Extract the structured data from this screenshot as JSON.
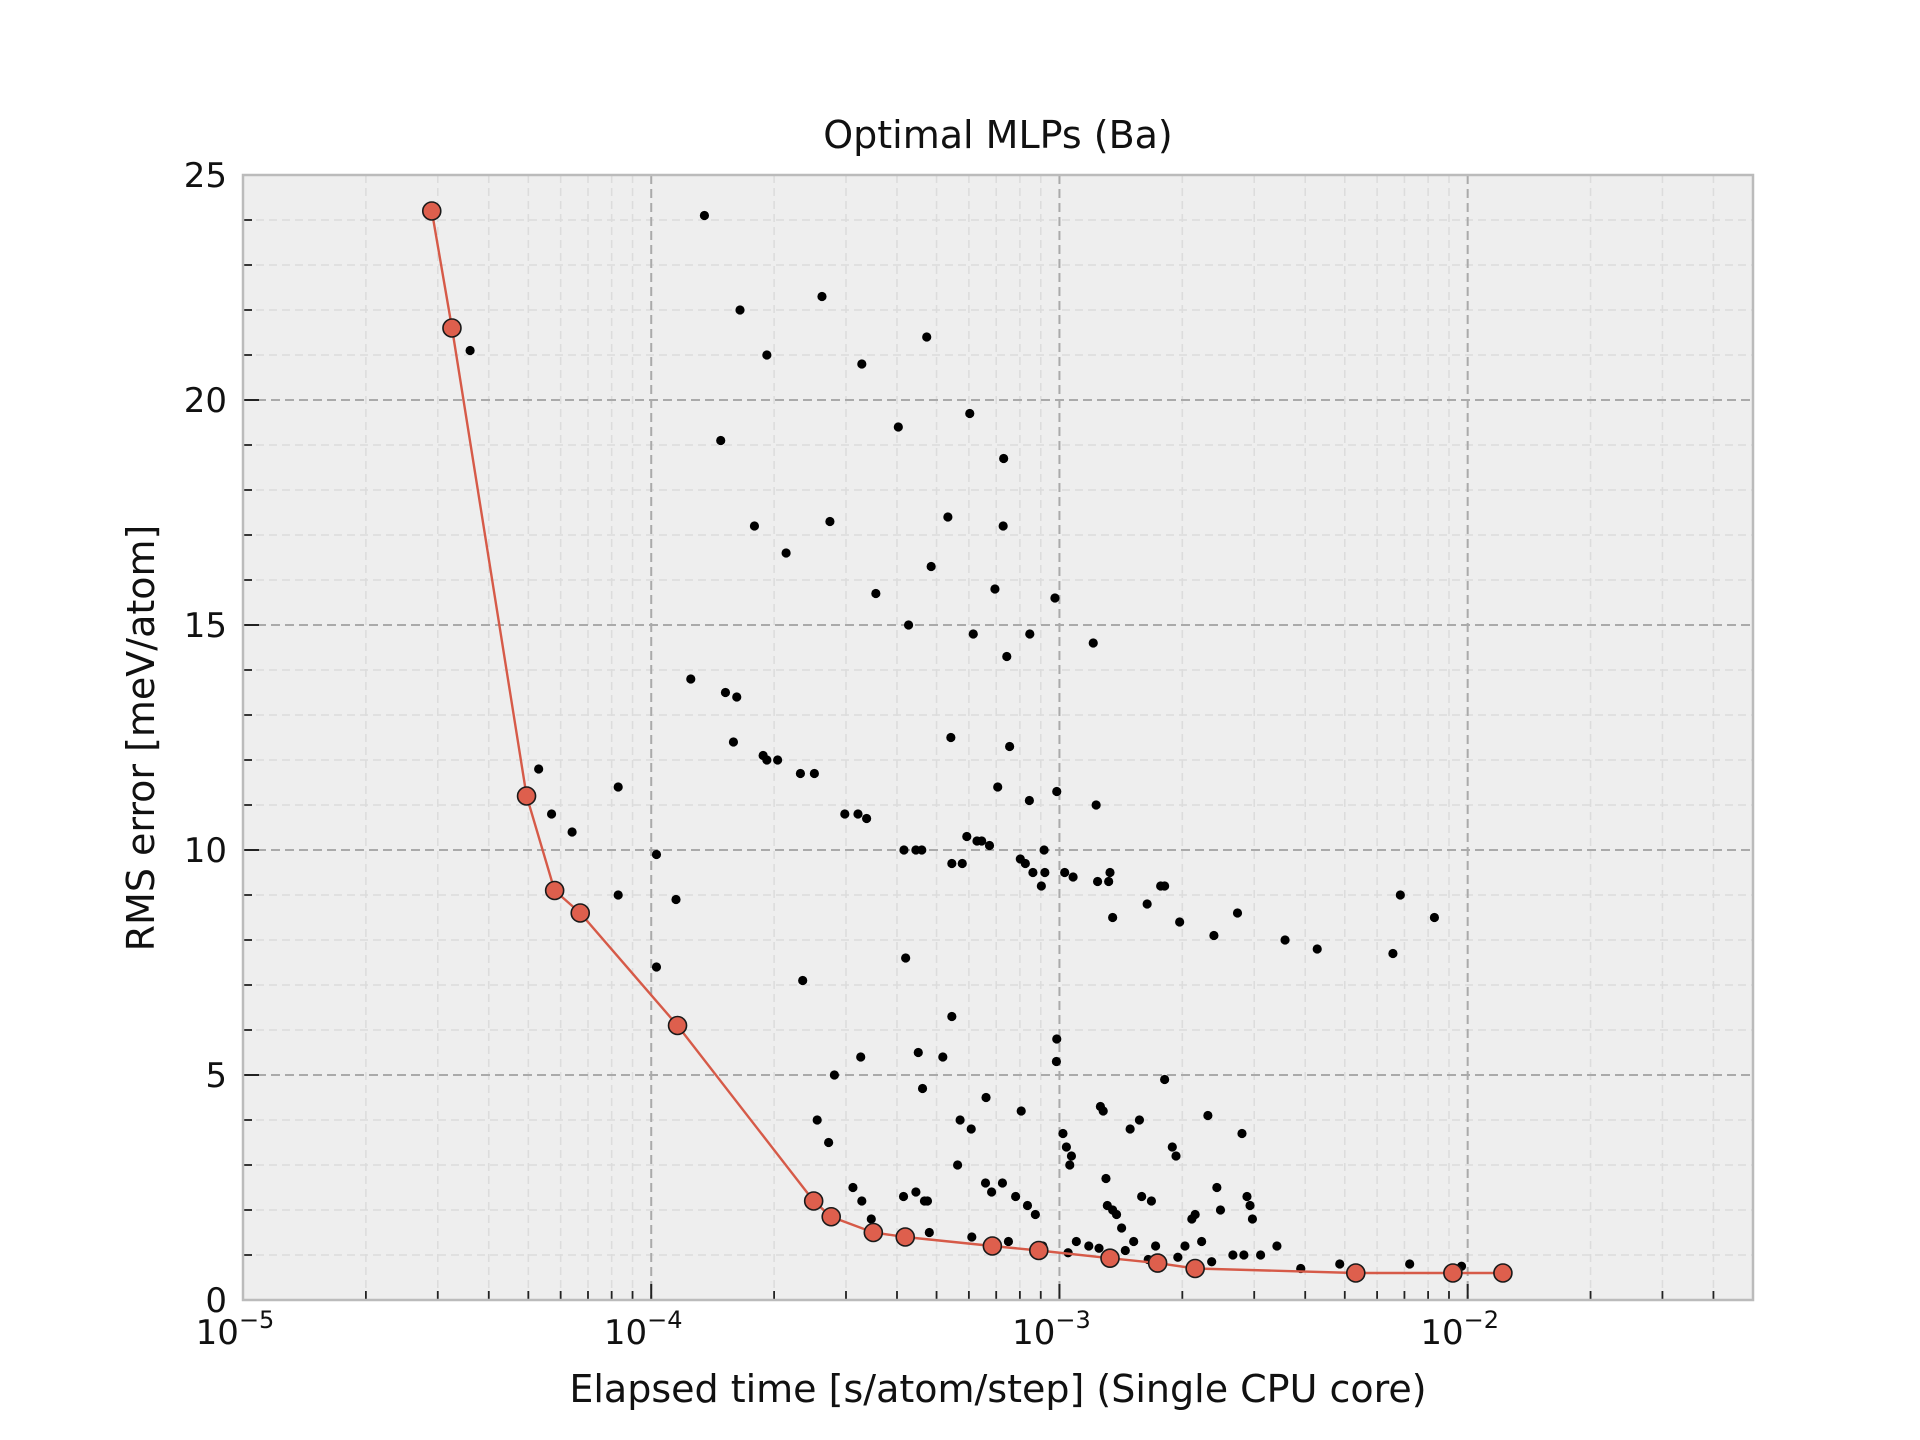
{
  "chart_data": {
    "type": "scatter",
    "title": "Optimal MLPs (Ba)",
    "xlabel": "Elapsed time [s/atom/step] (Single CPU core)",
    "ylabel": "RMS error [meV/atom]",
    "xscale": "log",
    "xlim": [
      1e-05,
      0.05
    ],
    "ylim": [
      0,
      25
    ],
    "x_ticks": [
      {
        "value": 1e-05,
        "base": "10",
        "exp": "−5"
      },
      {
        "value": 0.0001,
        "base": "10",
        "exp": "−4"
      },
      {
        "value": 0.001,
        "base": "10",
        "exp": "−3"
      },
      {
        "value": 0.01,
        "base": "10",
        "exp": "−2"
      }
    ],
    "y_ticks": [
      "0",
      "5",
      "10",
      "15",
      "20",
      "25"
    ],
    "grid": true,
    "colors": {
      "background": "#eeeeee",
      "frame": "#bbbbbb",
      "grid_major": "#aaaaaa",
      "grid_minor": "#dcdcdc",
      "pareto_line": "#d65a48",
      "pareto_marker": "#de5f4d",
      "points": "#000000"
    },
    "series": [
      {
        "kind": "points",
        "points": [
          [
            3.6e-05,
            21.1
          ],
          [
            5.3e-05,
            11.8
          ],
          [
            5.7e-05,
            10.8
          ],
          [
            6.4e-05,
            10.4
          ],
          [
            8.3e-05,
            11.4
          ],
          [
            8.3e-05,
            9.0
          ],
          [
            0.000103,
            9.9
          ],
          [
            0.000103,
            7.4
          ],
          [
            0.000115,
            8.9
          ],
          [
            0.000125,
            13.8
          ],
          [
            0.000135,
            24.1
          ],
          [
            0.000148,
            19.1
          ],
          [
            0.000152,
            13.5
          ],
          [
            0.000162,
            13.4
          ],
          [
            0.000159,
            12.4
          ],
          [
            0.000165,
            22.0
          ],
          [
            0.000179,
            17.2
          ],
          [
            0.000188,
            12.1
          ],
          [
            0.000192,
            21.0
          ],
          [
            0.000192,
            12.0
          ],
          [
            0.000204,
            12.0
          ],
          [
            0.000214,
            16.6
          ],
          [
            0.000232,
            11.7
          ],
          [
            0.000235,
            7.1
          ],
          [
            0.000251,
            11.7
          ],
          [
            0.000255,
            4.0
          ],
          [
            0.000262,
            22.3
          ],
          [
            0.000274,
            17.3
          ],
          [
            0.000272,
            3.5
          ],
          [
            0.000281,
            5.0
          ],
          [
            0.000298,
            10.8
          ],
          [
            0.000321,
            10.8
          ],
          [
            0.000337,
            10.7
          ],
          [
            0.000326,
            5.4
          ],
          [
            0.000312,
            2.5
          ],
          [
            0.000328,
            2.2
          ],
          [
            0.000346,
            1.8
          ],
          [
            0.000355,
            15.7
          ],
          [
            0.000328,
            20.8
          ],
          [
            0.000403,
            19.4
          ],
          [
            0.000416,
            10.0
          ],
          [
            0.00042,
            7.6
          ],
          [
            0.000427,
            15.0
          ],
          [
            0.000445,
            10.0
          ],
          [
            0.00046,
            10.0
          ],
          [
            0.000451,
            5.5
          ],
          [
            0.000462,
            4.7
          ],
          [
            0.000473,
            21.4
          ],
          [
            0.000485,
            16.3
          ],
          [
            0.000475,
            2.2
          ],
          [
            0.000467,
            2.2
          ],
          [
            0.000415,
            2.3
          ],
          [
            0.000445,
            2.4
          ],
          [
            0.000518,
            5.4
          ],
          [
            0.000533,
            17.4
          ],
          [
            0.000542,
            12.5
          ],
          [
            0.000545,
            9.7
          ],
          [
            0.000545,
            6.3
          ],
          [
            0.000563,
            3.0
          ],
          [
            0.000571,
            4.0
          ],
          [
            0.000578,
            9.7
          ],
          [
            0.000593,
            10.3
          ],
          [
            0.000603,
            19.7
          ],
          [
            0.000615,
            14.8
          ],
          [
            0.000608,
            3.8
          ],
          [
            0.000628,
            10.2
          ],
          [
            0.000645,
            10.2
          ],
          [
            0.000659,
            2.6
          ],
          [
            0.000661,
            4.5
          ],
          [
            0.000674,
            10.1
          ],
          [
            0.000682,
            2.4
          ],
          [
            0.000695,
            15.8
          ],
          [
            0.000706,
            11.4
          ],
          [
            0.000725,
            2.6
          ],
          [
            0.000728,
            17.2
          ],
          [
            0.00073,
            18.7
          ],
          [
            0.000743,
            14.3
          ],
          [
            0.000755,
            12.3
          ],
          [
            0.000781,
            2.3
          ],
          [
            0.000802,
            9.8
          ],
          [
            0.000806,
            4.2
          ],
          [
            0.000825,
            9.7
          ],
          [
            0.000835,
            2.1
          ],
          [
            0.000844,
            11.1
          ],
          [
            0.000846,
            14.8
          ],
          [
            0.000861,
            9.5
          ],
          [
            0.000873,
            1.9
          ],
          [
            0.000903,
            9.2
          ],
          [
            0.000917,
            10.0
          ],
          [
            0.000921,
            9.5
          ],
          [
            0.000975,
            15.6
          ],
          [
            0.000985,
            11.3
          ],
          [
            0.000985,
            5.8
          ],
          [
            0.000983,
            5.3
          ],
          [
            0.00102,
            3.7
          ],
          [
            0.00104,
            3.4
          ],
          [
            0.00106,
            3.0
          ],
          [
            0.00107,
            3.2
          ],
          [
            0.00103,
            9.5
          ],
          [
            0.00108,
            9.4
          ],
          [
            0.00118,
            1.2
          ],
          [
            0.00121,
            14.6
          ],
          [
            0.00123,
            11.0
          ],
          [
            0.00124,
            9.3
          ],
          [
            0.00126,
            4.3
          ],
          [
            0.00128,
            4.2
          ],
          [
            0.0013,
            2.7
          ],
          [
            0.00133,
            9.5
          ],
          [
            0.00132,
            9.3
          ],
          [
            0.00135,
            8.5
          ],
          [
            0.00131,
            2.1
          ],
          [
            0.00135,
            2.0
          ],
          [
            0.00138,
            1.9
          ],
          [
            0.00142,
            1.6
          ],
          [
            0.00149,
            3.8
          ],
          [
            0.00152,
            1.3
          ],
          [
            0.00157,
            4.0
          ],
          [
            0.00159,
            2.3
          ],
          [
            0.00164,
            8.8
          ],
          [
            0.00168,
            2.2
          ],
          [
            0.00172,
            1.2
          ],
          [
            0.00177,
            9.2
          ],
          [
            0.00181,
            9.2
          ],
          [
            0.00181,
            4.9
          ],
          [
            0.00189,
            3.4
          ],
          [
            0.00193,
            3.2
          ],
          [
            0.00197,
            8.4
          ],
          [
            0.00203,
            1.2
          ],
          [
            0.00211,
            1.8
          ],
          [
            0.00215,
            1.9
          ],
          [
            0.00223,
            1.3
          ],
          [
            0.00231,
            4.1
          ],
          [
            0.00239,
            8.1
          ],
          [
            0.00243,
            2.5
          ],
          [
            0.00248,
            2.0
          ],
          [
            0.00266,
            1.0
          ],
          [
            0.00273,
            8.6
          ],
          [
            0.0028,
            3.7
          ],
          [
            0.00288,
            2.3
          ],
          [
            0.00293,
            2.1
          ],
          [
            0.00297,
            1.8
          ],
          [
            0.00311,
            1.0
          ],
          [
            0.00341,
            1.2
          ],
          [
            0.00357,
            8.0
          ],
          [
            0.00428,
            7.8
          ],
          [
            0.00486,
            0.8
          ],
          [
            0.00656,
            7.7
          ],
          [
            0.00684,
            9.0
          ],
          [
            0.00721,
            0.8
          ],
          [
            0.00829,
            8.5
          ],
          [
            0.00966,
            0.75
          ],
          [
            0.00283,
            1.0
          ],
          [
            0.00195,
            0.95
          ],
          [
            0.00145,
            1.1
          ],
          [
            0.0011,
            1.3
          ],
          [
            0.00091,
            1.2
          ],
          [
            0.00048,
            1.5
          ],
          [
            0.00061,
            1.4
          ],
          [
            0.00075,
            1.3
          ],
          [
            0.00105,
            1.05
          ],
          [
            0.00125,
            1.15
          ],
          [
            0.00165,
            0.9
          ],
          [
            0.00236,
            0.85
          ],
          [
            0.0039,
            0.7
          ]
        ]
      },
      {
        "kind": "pareto",
        "points": [
          [
            2.9e-05,
            24.2
          ],
          [
            3.25e-05,
            21.6
          ],
          [
            4.95e-05,
            11.2
          ],
          [
            5.8e-05,
            9.1
          ],
          [
            6.7e-05,
            8.6
          ],
          [
            0.000116,
            6.1
          ],
          [
            0.00025,
            2.2
          ],
          [
            0.000276,
            1.85
          ],
          [
            0.00035,
            1.5
          ],
          [
            0.000419,
            1.4
          ],
          [
            0.000685,
            1.2
          ],
          [
            0.00089,
            1.1
          ],
          [
            0.00133,
            0.93
          ],
          [
            0.00174,
            0.82
          ],
          [
            0.00215,
            0.7
          ],
          [
            0.00532,
            0.6
          ],
          [
            0.0092,
            0.6
          ],
          [
            0.0122,
            0.6
          ]
        ]
      }
    ]
  }
}
